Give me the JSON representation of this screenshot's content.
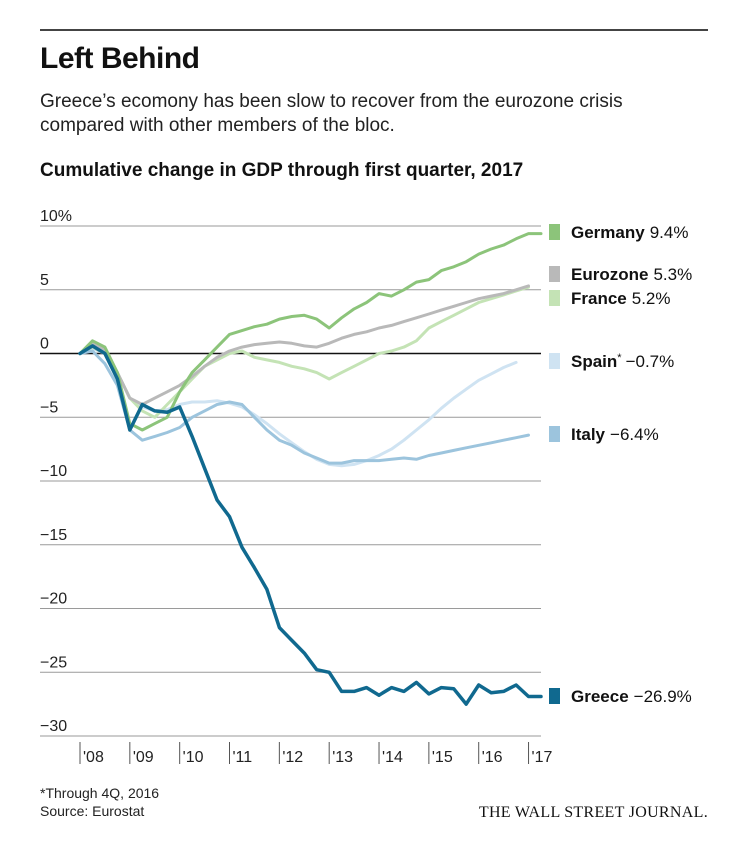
{
  "header": {
    "title": "Left Behind",
    "subtitle": "Greece’s ecomony has been slow to recover from the eurozone crisis compared with other members of the bloc."
  },
  "chart_data": {
    "type": "line",
    "title": "Cumulative change in GDP through first quarter, 2017",
    "xlabel": "",
    "ylabel": "",
    "ylim": [
      -30,
      10
    ],
    "xlim": [
      2008,
      2017.25
    ],
    "y_ticks": [
      10,
      5,
      0,
      -5,
      -10,
      -15,
      -20,
      -25,
      -30
    ],
    "y_tick_labels": [
      "10%",
      "5",
      "0",
      "−5",
      "−10",
      "−15",
      "−20",
      "−25",
      "−30"
    ],
    "x_ticks": [
      2008,
      2009,
      2010,
      2011,
      2012,
      2013,
      2014,
      2015,
      2016,
      2017
    ],
    "x_tick_labels": [
      "'08",
      "'09",
      "'10",
      "'11",
      "'12",
      "'13",
      "'14",
      "'15",
      "'16",
      "'17"
    ],
    "grid": "horizontal",
    "legend": "right, labels at line ends",
    "series": [
      {
        "name": "Germany",
        "end_label": "9.4%",
        "color": "#8cc47a",
        "x": [
          2008.0,
          2008.25,
          2008.5,
          2008.75,
          2009.0,
          2009.25,
          2009.5,
          2009.75,
          2010.0,
          2010.25,
          2010.5,
          2010.75,
          2011.0,
          2011.25,
          2011.5,
          2011.75,
          2012.0,
          2012.25,
          2012.5,
          2012.75,
          2013.0,
          2013.25,
          2013.5,
          2013.75,
          2014.0,
          2014.25,
          2014.5,
          2014.75,
          2015.0,
          2015.25,
          2015.5,
          2015.75,
          2016.0,
          2016.25,
          2016.5,
          2016.75,
          2017.0,
          2017.25
        ],
        "y": [
          0.0,
          1.0,
          0.5,
          -1.5,
          -5.5,
          -6.0,
          -5.5,
          -5.0,
          -3.0,
          -1.5,
          -0.5,
          0.5,
          1.5,
          1.8,
          2.1,
          2.3,
          2.7,
          2.9,
          3.0,
          2.7,
          2.0,
          2.8,
          3.5,
          4.0,
          4.7,
          4.5,
          5.0,
          5.6,
          5.8,
          6.5,
          6.8,
          7.2,
          7.8,
          8.2,
          8.5,
          9.0,
          9.4,
          9.4
        ]
      },
      {
        "name": "Eurozone",
        "end_label": "5.3%",
        "color": "#b9b9b9",
        "x": [
          2008.0,
          2008.25,
          2008.5,
          2008.75,
          2009.0,
          2009.25,
          2009.5,
          2009.75,
          2010.0,
          2010.25,
          2010.5,
          2010.75,
          2011.0,
          2011.25,
          2011.5,
          2011.75,
          2012.0,
          2012.25,
          2012.5,
          2012.75,
          2013.0,
          2013.25,
          2013.5,
          2013.75,
          2014.0,
          2014.25,
          2014.5,
          2014.75,
          2015.0,
          2015.25,
          2015.5,
          2015.75,
          2016.0,
          2016.25,
          2016.5,
          2016.75,
          2017.0
        ],
        "y": [
          0.0,
          0.8,
          0.3,
          -1.5,
          -3.5,
          -4.0,
          -3.5,
          -3.0,
          -2.5,
          -1.8,
          -1.0,
          -0.3,
          0.2,
          0.5,
          0.7,
          0.8,
          0.9,
          0.8,
          0.6,
          0.5,
          0.8,
          1.2,
          1.5,
          1.7,
          2.0,
          2.2,
          2.5,
          2.8,
          3.1,
          3.4,
          3.7,
          4.0,
          4.3,
          4.5,
          4.7,
          5.0,
          5.3
        ]
      },
      {
        "name": "France",
        "end_label": "5.2%",
        "color": "#c4e3b5",
        "x": [
          2008.0,
          2008.25,
          2008.5,
          2008.75,
          2009.0,
          2009.25,
          2009.5,
          2009.75,
          2010.0,
          2010.25,
          2010.5,
          2010.75,
          2011.0,
          2011.25,
          2011.5,
          2011.75,
          2012.0,
          2012.25,
          2012.5,
          2012.75,
          2013.0,
          2013.25,
          2013.5,
          2013.75,
          2014.0,
          2014.25,
          2014.5,
          2014.75,
          2015.0,
          2015.25,
          2015.5,
          2015.75,
          2016.0,
          2016.25,
          2016.5,
          2016.75,
          2017.0
        ],
        "y": [
          0.0,
          0.5,
          0.0,
          -1.5,
          -3.5,
          -4.5,
          -5.0,
          -4.0,
          -3.0,
          -2.0,
          -1.0,
          -0.5,
          0.0,
          0.2,
          -0.3,
          -0.5,
          -0.7,
          -1.0,
          -1.2,
          -1.5,
          -2.0,
          -1.5,
          -1.0,
          -0.5,
          0.0,
          0.2,
          0.5,
          1.0,
          2.0,
          2.5,
          3.0,
          3.5,
          4.0,
          4.3,
          4.6,
          4.9,
          5.2
        ]
      },
      {
        "name": "Spain",
        "footnote_mark": "*",
        "end_label": "−0.7%",
        "color": "#cfe3f2",
        "x": [
          2008.0,
          2008.25,
          2008.5,
          2008.75,
          2009.0,
          2009.25,
          2009.5,
          2009.75,
          2010.0,
          2010.25,
          2010.5,
          2010.75,
          2011.0,
          2011.25,
          2011.5,
          2011.75,
          2012.0,
          2012.25,
          2012.5,
          2012.75,
          2013.0,
          2013.25,
          2013.5,
          2013.75,
          2014.0,
          2014.25,
          2014.5,
          2014.75,
          2015.0,
          2015.25,
          2015.5,
          2015.75,
          2016.0,
          2016.25,
          2016.5,
          2016.75
        ],
        "y": [
          0.0,
          0.4,
          0.0,
          -1.5,
          -3.5,
          -4.2,
          -4.5,
          -4.4,
          -4.0,
          -3.8,
          -3.8,
          -3.7,
          -3.9,
          -4.2,
          -4.8,
          -5.5,
          -6.3,
          -7.0,
          -7.7,
          -8.3,
          -8.7,
          -8.8,
          -8.7,
          -8.4,
          -8.0,
          -7.5,
          -6.8,
          -6.0,
          -5.2,
          -4.3,
          -3.5,
          -2.8,
          -2.1,
          -1.6,
          -1.1,
          -0.7
        ]
      },
      {
        "name": "Italy",
        "end_label": "−6.4%",
        "color": "#9cc4dd",
        "x": [
          2008.0,
          2008.25,
          2008.5,
          2008.75,
          2009.0,
          2009.25,
          2009.5,
          2009.75,
          2010.0,
          2010.25,
          2010.5,
          2010.75,
          2011.0,
          2011.25,
          2011.5,
          2011.75,
          2012.0,
          2012.25,
          2012.5,
          2012.75,
          2013.0,
          2013.25,
          2013.5,
          2013.75,
          2014.0,
          2014.25,
          2014.5,
          2014.75,
          2015.0,
          2015.25,
          2015.5,
          2015.75,
          2016.0,
          2016.25,
          2016.5,
          2016.75,
          2017.0
        ],
        "y": [
          0.0,
          0.2,
          -0.8,
          -2.5,
          -6.0,
          -6.8,
          -6.5,
          -6.2,
          -5.8,
          -5.0,
          -4.5,
          -4.0,
          -3.8,
          -4.0,
          -5.0,
          -6.0,
          -6.8,
          -7.2,
          -7.8,
          -8.2,
          -8.6,
          -8.6,
          -8.4,
          -8.4,
          -8.4,
          -8.3,
          -8.2,
          -8.3,
          -8.0,
          -7.8,
          -7.6,
          -7.4,
          -7.2,
          -7.0,
          -6.8,
          -6.6,
          -6.4
        ]
      },
      {
        "name": "Greece",
        "end_label": "−26.9%",
        "color": "#10698f",
        "x": [
          2008.0,
          2008.25,
          2008.5,
          2008.75,
          2009.0,
          2009.25,
          2009.5,
          2009.75,
          2010.0,
          2010.25,
          2010.5,
          2010.75,
          2011.0,
          2011.25,
          2011.5,
          2011.75,
          2012.0,
          2012.25,
          2012.5,
          2012.75,
          2013.0,
          2013.25,
          2013.5,
          2013.75,
          2014.0,
          2014.25,
          2014.5,
          2014.75,
          2015.0,
          2015.25,
          2015.5,
          2015.75,
          2016.0,
          2016.25,
          2016.5,
          2016.75,
          2017.0,
          2017.25
        ],
        "y": [
          0.0,
          0.6,
          0.0,
          -2.0,
          -6.0,
          -4.0,
          -4.5,
          -4.6,
          -4.2,
          -6.5,
          -9.0,
          -11.5,
          -12.8,
          -15.2,
          -16.8,
          -18.5,
          -21.5,
          -22.5,
          -23.5,
          -24.8,
          -25.0,
          -26.5,
          -26.5,
          -26.2,
          -26.8,
          -26.2,
          -26.5,
          -25.8,
          -26.7,
          -26.2,
          -26.3,
          -27.5,
          -26.0,
          -26.6,
          -26.5,
          -26.0,
          -26.9,
          -26.9
        ]
      }
    ]
  },
  "footer": {
    "note": "*Through 4Q, 2016",
    "source": "Source: Eurostat",
    "brand": "THE WALL STREET JOURNAL."
  }
}
